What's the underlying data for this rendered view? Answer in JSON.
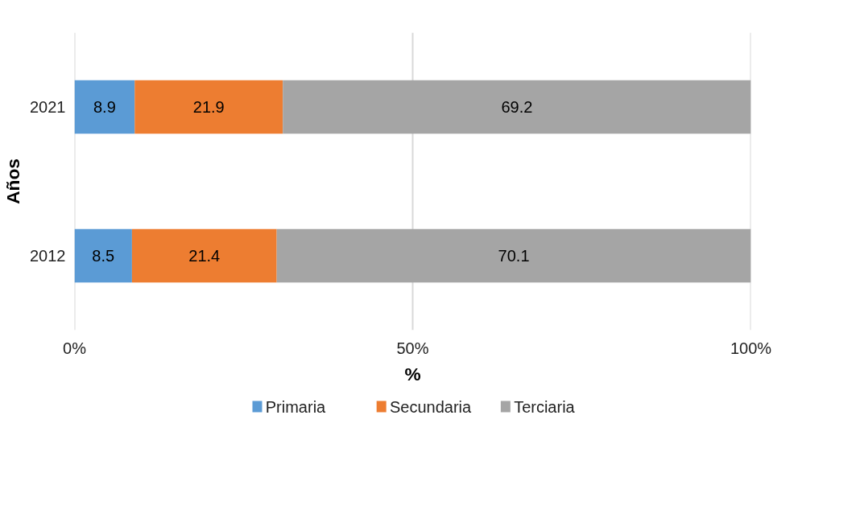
{
  "chart_data": {
    "type": "bar",
    "orientation": "horizontal",
    "stacked": true,
    "categories": [
      "2021",
      "2012"
    ],
    "series": [
      {
        "name": "Primaria",
        "color": "#5b9bd5",
        "values": [
          8.9,
          8.5
        ]
      },
      {
        "name": "Secundaria",
        "color": "#ed7d31",
        "values": [
          21.9,
          21.4
        ]
      },
      {
        "name": "Terciaria",
        "color": "#a5a5a5",
        "values": [
          69.2,
          70.1
        ]
      }
    ],
    "xlim": [
      0,
      100
    ],
    "xticks": [
      {
        "value": 0,
        "label": "0%"
      },
      {
        "value": 50,
        "label": "50%"
      },
      {
        "value": 100,
        "label": "100%"
      }
    ],
    "xlabel": "%",
    "ylabel": "Años",
    "data_labels": true,
    "grid": "x",
    "legend": "bottom"
  }
}
